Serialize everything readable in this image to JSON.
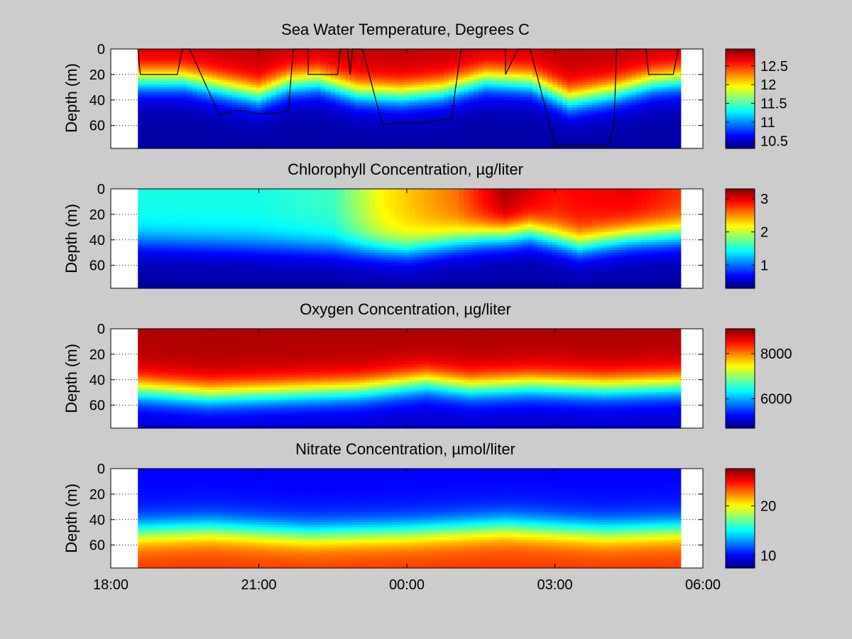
{
  "figure": {
    "background": "#cccccc",
    "x_ticks": [
      "18:00",
      "21:00",
      "00:00",
      "03:00",
      "06:00"
    ],
    "x_tick_values": [
      18,
      21,
      24,
      27,
      30
    ],
    "xlim": [
      18,
      30
    ],
    "data_window": [
      18.55,
      29.55
    ]
  },
  "chart_data": [
    {
      "type": "heatmap",
      "title": "Sea Water Temperature, Degrees C",
      "ylabel": "Depth (m)",
      "ylim": [
        78,
        0
      ],
      "y_ticks": [
        "0",
        "20",
        "40",
        "60"
      ],
      "y_tick_values": [
        0,
        20,
        40,
        60
      ],
      "colormap": "jet",
      "clim": [
        10.3,
        12.95
      ],
      "colorbar_ticks": [
        "10.5",
        "11",
        "11.5",
        "12",
        "12.5"
      ],
      "colorbar_tick_values": [
        10.5,
        11,
        11.5,
        12,
        12.5
      ],
      "surface_value": 12.8,
      "deep_value": 10.4,
      "thermocline_depth": [
        {
          "x": 18.55,
          "d": 24
        },
        {
          "x": 19.5,
          "d": 24
        },
        {
          "x": 20.2,
          "d": 30
        },
        {
          "x": 21.0,
          "d": 36
        },
        {
          "x": 21.6,
          "d": 27
        },
        {
          "x": 22.2,
          "d": 25
        },
        {
          "x": 23.0,
          "d": 34
        },
        {
          "x": 23.9,
          "d": 36
        },
        {
          "x": 24.7,
          "d": 33
        },
        {
          "x": 25.6,
          "d": 24
        },
        {
          "x": 26.5,
          "d": 26
        },
        {
          "x": 27.3,
          "d": 40
        },
        {
          "x": 28.2,
          "d": 34
        },
        {
          "x": 29.0,
          "d": 26
        },
        {
          "x": 29.55,
          "d": 24
        }
      ],
      "track_line": [
        {
          "x": 18.55,
          "y": 0
        },
        {
          "x": 18.6,
          "y": 20
        },
        {
          "x": 19.35,
          "y": 20
        },
        {
          "x": 19.45,
          "y": 0
        },
        {
          "x": 19.6,
          "y": 0
        },
        {
          "x": 20.2,
          "y": 52
        },
        {
          "x": 20.6,
          "y": 48
        },
        {
          "x": 21.0,
          "y": 51
        },
        {
          "x": 21.4,
          "y": 50
        },
        {
          "x": 21.6,
          "y": 48
        },
        {
          "x": 21.7,
          "y": 0
        },
        {
          "x": 22.0,
          "y": 0
        },
        {
          "x": 22.0,
          "y": 20
        },
        {
          "x": 22.6,
          "y": 20
        },
        {
          "x": 22.65,
          "y": 0
        },
        {
          "x": 22.8,
          "y": 0
        },
        {
          "x": 22.85,
          "y": 20
        },
        {
          "x": 22.9,
          "y": 0
        },
        {
          "x": 23.1,
          "y": 0
        },
        {
          "x": 23.5,
          "y": 59
        },
        {
          "x": 24.3,
          "y": 58
        },
        {
          "x": 24.8,
          "y": 55
        },
        {
          "x": 24.9,
          "y": 55
        },
        {
          "x": 25.1,
          "y": 0
        },
        {
          "x": 26.0,
          "y": 0
        },
        {
          "x": 26.0,
          "y": 20
        },
        {
          "x": 26.25,
          "y": 0
        },
        {
          "x": 26.5,
          "y": 0
        },
        {
          "x": 27.0,
          "y": 75
        },
        {
          "x": 28.1,
          "y": 75
        },
        {
          "x": 28.2,
          "y": 60
        },
        {
          "x": 28.25,
          "y": 0
        },
        {
          "x": 28.85,
          "y": 0
        },
        {
          "x": 28.9,
          "y": 20
        },
        {
          "x": 29.4,
          "y": 20
        },
        {
          "x": 29.5,
          "y": 0
        }
      ]
    },
    {
      "type": "heatmap",
      "title": "Chlorophyll Concentration, µg/liter",
      "ylabel": "Depth (m)",
      "ylim": [
        78,
        0
      ],
      "y_ticks": [
        "0",
        "20",
        "40",
        "60"
      ],
      "y_tick_values": [
        0,
        20,
        40,
        60
      ],
      "colormap": "jet",
      "clim": [
        0.3,
        3.3
      ],
      "colorbar_ticks": [
        "1",
        "2",
        "3"
      ],
      "colorbar_tick_values": [
        1,
        2,
        3
      ],
      "surface_value": [
        {
          "x": 18.55,
          "v": 1.5
        },
        {
          "x": 21.0,
          "v": 1.5
        },
        {
          "x": 22.5,
          "v": 1.6
        },
        {
          "x": 23.5,
          "v": 2.2
        },
        {
          "x": 25.0,
          "v": 2.6
        },
        {
          "x": 26.0,
          "v": 3.2
        },
        {
          "x": 27.0,
          "v": 2.9
        },
        {
          "x": 28.5,
          "v": 3.0
        },
        {
          "x": 29.55,
          "v": 2.8
        }
      ],
      "deep_value": 0.4,
      "thermocline_depth": [
        {
          "x": 18.55,
          "d": 42
        },
        {
          "x": 20.5,
          "d": 44
        },
        {
          "x": 22.0,
          "d": 46
        },
        {
          "x": 24.0,
          "d": 48
        },
        {
          "x": 25.5,
          "d": 38
        },
        {
          "x": 26.5,
          "d": 34
        },
        {
          "x": 27.5,
          "d": 44
        },
        {
          "x": 28.5,
          "d": 38
        },
        {
          "x": 29.55,
          "d": 36
        }
      ]
    },
    {
      "type": "heatmap",
      "title": "Oxygen Concentration, µg/liter",
      "ylabel": "Depth (m)",
      "ylim": [
        78,
        0
      ],
      "y_ticks": [
        "0",
        "20",
        "40",
        "60"
      ],
      "y_tick_values": [
        0,
        20,
        40,
        60
      ],
      "colormap": "jet",
      "clim": [
        4700,
        9100
      ],
      "colorbar_ticks": [
        "6000",
        "8000"
      ],
      "colorbar_tick_values": [
        6000,
        8000
      ],
      "surface_value": 8900,
      "deep_value": 5000,
      "thermocline_depth": [
        {
          "x": 18.55,
          "d": 48
        },
        {
          "x": 20.0,
          "d": 52
        },
        {
          "x": 21.5,
          "d": 50
        },
        {
          "x": 23.0,
          "d": 48
        },
        {
          "x": 24.4,
          "d": 42
        },
        {
          "x": 25.3,
          "d": 46
        },
        {
          "x": 26.5,
          "d": 44
        },
        {
          "x": 28.0,
          "d": 46
        },
        {
          "x": 29.55,
          "d": 44
        }
      ]
    },
    {
      "type": "heatmap",
      "title": "Nitrate Concentration, µmol/liter",
      "ylabel": "Depth (m)",
      "ylim": [
        78,
        0
      ],
      "y_ticks": [
        "0",
        "20",
        "40",
        "60"
      ],
      "y_tick_values": [
        0,
        20,
        40,
        60
      ],
      "colormap": "jet",
      "clim": [
        7.5,
        27.5
      ],
      "colorbar_ticks": [
        "10",
        "20"
      ],
      "colorbar_tick_values": [
        10,
        20
      ],
      "surface_value": 10,
      "deep_value": 24,
      "thermocline_depth": [
        {
          "x": 18.55,
          "d": 50
        },
        {
          "x": 20.0,
          "d": 48
        },
        {
          "x": 22.0,
          "d": 52
        },
        {
          "x": 24.0,
          "d": 50
        },
        {
          "x": 26.0,
          "d": 46
        },
        {
          "x": 28.0,
          "d": 50
        },
        {
          "x": 29.55,
          "d": 48
        }
      ]
    }
  ]
}
